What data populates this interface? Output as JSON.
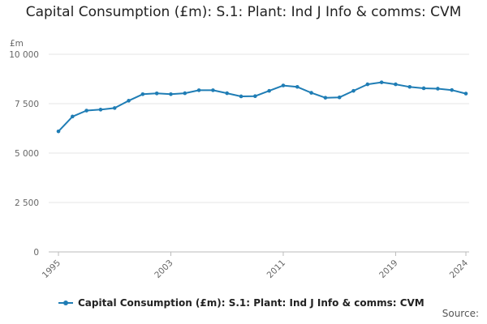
{
  "chart_data": {
    "type": "line",
    "title": "Capital Consumption (£m): S.1: Plant: Ind J Info & comms: CVM",
    "ylabel": "£m",
    "xlabel": "",
    "ylim": [
      0,
      10000
    ],
    "yticks": [
      0,
      2500,
      5000,
      7500,
      10000
    ],
    "ytick_labels": [
      "0",
      "2 500",
      "5 000",
      "7 500",
      "10 000"
    ],
    "xtick_years": [
      1995,
      2003,
      2011,
      2019,
      2024
    ],
    "grid": true,
    "legend_position": "bottom-left",
    "color": "#1f7db5",
    "series": [
      {
        "name": "Capital Consumption (£m): S.1: Plant: Ind J Info & comms: CVM",
        "x": [
          1995,
          1996,
          1997,
          1998,
          1999,
          2000,
          2001,
          2002,
          2003,
          2004,
          2005,
          2006,
          2007,
          2008,
          2009,
          2010,
          2011,
          2012,
          2013,
          2014,
          2015,
          2016,
          2017,
          2018,
          2019,
          2020,
          2021,
          2022,
          2023,
          2024
        ],
        "values": [
          6100,
          6850,
          7150,
          7200,
          7280,
          7650,
          7980,
          8020,
          7980,
          8030,
          8180,
          8180,
          8030,
          7870,
          7880,
          8150,
          8420,
          8350,
          8050,
          7800,
          7820,
          8150,
          8480,
          8580,
          8480,
          8350,
          8280,
          8260,
          8190,
          8010
        ]
      }
    ]
  },
  "legend": {
    "label": "Capital Consumption (£m): S.1: Plant: Ind J Info & comms: CVM"
  },
  "source_label": "Source:"
}
